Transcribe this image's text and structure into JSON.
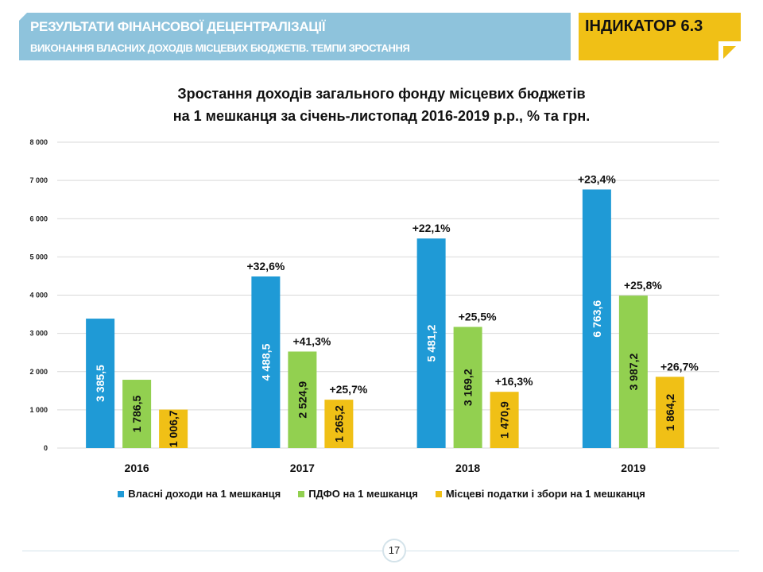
{
  "header": {
    "title": "РЕЗУЛЬТАТИ ФІНАНСОВОЇ ДЕЦЕНТРАЛІЗАЦІЇ",
    "subtitle": "ВИКОНАННЯ ВЛАСНИХ ДОХОДІВ МІСЦЕВИХ БЮДЖЕТІВ. ТЕМПИ ЗРОСТАННЯ",
    "indicator": "ІНДИКАТОР 6.3"
  },
  "colors": {
    "banner": "#8ec3dc",
    "indicator": "#f0c016",
    "series_own": "#1f9ad6",
    "series_pdfo": "#92d050",
    "series_local": "#f0c016"
  },
  "chart_data": {
    "type": "bar",
    "title_line1": "Зростання доходів загального фонду місцевих бюджетів",
    "title_line2": "на 1 мешканця за січень-листопад 2016-2019 р.р., % та грн.",
    "xlabel": "",
    "ylabel": "",
    "ylim": [
      0,
      8000
    ],
    "yticks": [
      0,
      1000,
      2000,
      3000,
      4000,
      5000,
      6000,
      7000,
      8000
    ],
    "ytick_labels": [
      "0",
      "1 000",
      "2 000",
      "3 000",
      "4 000",
      "5 000",
      "6 000",
      "7 000",
      "8 000"
    ],
    "grid": true,
    "legend_position": "bottom",
    "categories": [
      "2016",
      "2017",
      "2018",
      "2019"
    ],
    "series": [
      {
        "name": "Власні доходи на 1 мешканця",
        "color": "#1f9ad6",
        "values": [
          3385.5,
          4488.5,
          5481.2,
          6763.6
        ],
        "value_labels": [
          "3 385,5",
          "4 488,5",
          "5 481,2",
          "6 763,6"
        ],
        "growth_labels": [
          "",
          "+32,6%",
          "+22,1%",
          "+23,4%"
        ],
        "label_color": "#ffffff"
      },
      {
        "name": "ПДФО на 1 мешканця",
        "color": "#92d050",
        "values": [
          1786.5,
          2524.9,
          3169.2,
          3987.2
        ],
        "value_labels": [
          "1 786,5",
          "2 524,9",
          "3 169,2",
          "3 987,2"
        ],
        "growth_labels": [
          "",
          "+41,3%",
          "+25,5%",
          "+25,8%"
        ],
        "label_color": "#111111"
      },
      {
        "name": "Місцеві податки і збори на 1 мешканця",
        "color": "#f0c016",
        "values": [
          1006.7,
          1265.2,
          1470.9,
          1864.2
        ],
        "value_labels": [
          "1 006,7",
          "1 265,2",
          "1 470,9",
          "1 864,2"
        ],
        "growth_labels": [
          "",
          "+25,7%",
          "+16,3%",
          "+26,7%"
        ],
        "label_color": "#111111"
      }
    ]
  },
  "footer": {
    "page_number": "17"
  }
}
